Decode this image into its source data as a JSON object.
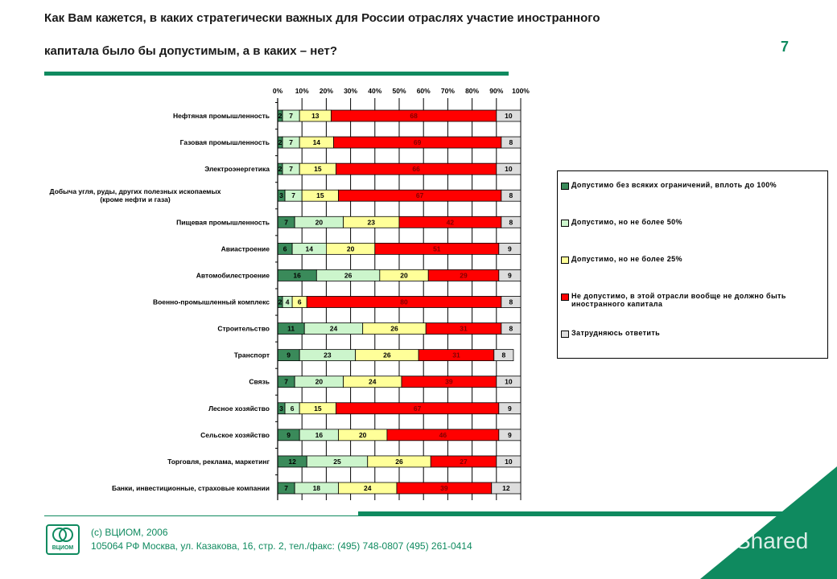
{
  "header": {
    "title_line1": "Как Вам кажется, в каких стратегически важных для России отраслях участие иностранного",
    "title_line2": "капитала было бы допустимым, а в каких – нет?",
    "page_number": "7"
  },
  "chart_data": {
    "type": "bar",
    "orientation": "horizontal-stacked-100",
    "xlim": [
      0,
      100
    ],
    "x_ticks": [
      "0%",
      "10%",
      "20%",
      "30%",
      "40%",
      "50%",
      "60%",
      "70%",
      "80%",
      "90%",
      "100%"
    ],
    "grid": true,
    "legend_position": "right",
    "categories": [
      "Нефтяная промышленность",
      "Газовая промышленность",
      "Электроэнергетика",
      "Добыча угля, руды, других полезных ископаемых (кроме нефти и газа)",
      "Пищевая промышленность",
      "Авиастроение",
      "Автомобилестроение",
      "Военно-промышленный комплекс",
      "Строительство",
      "Транспорт",
      "Связь",
      "Лесное хозяйство",
      "Сельское хозяйство",
      "Торговля, реклама, маркетинг",
      "Банки, инвестиционные, страховые компании"
    ],
    "series": [
      {
        "name": "Допустимо без всяких ограничений, вплоть до 100%",
        "color": "#3a8a5a",
        "text_color": "#000000",
        "values": [
          2,
          2,
          2,
          3,
          7,
          6,
          16,
          2,
          11,
          9,
          7,
          3,
          9,
          12,
          7
        ]
      },
      {
        "name": "Допустимо, но не более 50%",
        "color": "#ccf5cc",
        "text_color": "#000000",
        "values": [
          7,
          7,
          7,
          7,
          20,
          14,
          26,
          4,
          24,
          23,
          20,
          6,
          16,
          25,
          18
        ]
      },
      {
        "name": "Допустимо, но не более 25%",
        "color": "#ffff99",
        "text_color": "#000000",
        "values": [
          13,
          14,
          15,
          15,
          23,
          20,
          20,
          6,
          26,
          26,
          24,
          15,
          20,
          26,
          24
        ]
      },
      {
        "name": "Не допустимо, в этой отрасли вообще не должно быть иностранного капитала",
        "color": "#ff0000",
        "text_color": "#800000",
        "values": [
          68,
          69,
          66,
          67,
          42,
          51,
          29,
          80,
          31,
          31,
          39,
          67,
          46,
          27,
          39
        ]
      },
      {
        "name": "Затрудняюсь ответить",
        "color": "#dddddd",
        "text_color": "#000000",
        "values": [
          10,
          8,
          10,
          8,
          8,
          9,
          9,
          8,
          8,
          8,
          10,
          9,
          9,
          10,
          12
        ]
      }
    ]
  },
  "legend": {
    "items": [
      "Допустимо без всяких ограничений, вплоть до 100%",
      "Допустимо, но не более 50%",
      "Допустимо, но не более 25%",
      "Не допустимо, в этой отрасли вообще не должно быть иностранного капитала",
      "Затрудняюсь ответить"
    ]
  },
  "footer": {
    "copyright": "(с) ВЦИОМ, 2006",
    "address": "105064  РФ Москва, ул. Казакова, 16, стр. 2, тел./факс: (495) 748-0807  (495)  261-0414",
    "logo_text": "ВЦИОМ",
    "watermark": "yShared"
  }
}
